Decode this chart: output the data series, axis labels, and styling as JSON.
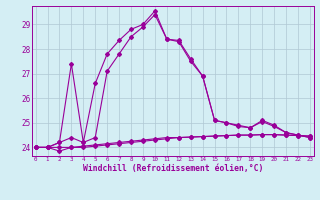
{
  "x": [
    0,
    1,
    2,
    3,
    4,
    5,
    6,
    7,
    8,
    9,
    10,
    11,
    12,
    13,
    14,
    15,
    16,
    17,
    18,
    19,
    20,
    21,
    22,
    23
  ],
  "line1": [
    24.0,
    24.0,
    24.0,
    24.0,
    24.05,
    24.1,
    24.15,
    24.2,
    24.25,
    24.3,
    24.35,
    24.4,
    24.4,
    24.42,
    24.44,
    24.46,
    24.48,
    24.5,
    24.5,
    24.52,
    24.52,
    24.5,
    24.48,
    24.46
  ],
  "line2": [
    24.0,
    24.0,
    23.85,
    24.0,
    24.0,
    24.05,
    24.1,
    24.15,
    24.2,
    24.25,
    24.3,
    24.35,
    24.4,
    24.42,
    24.44,
    24.46,
    24.48,
    24.5,
    24.5,
    24.52,
    24.52,
    24.5,
    24.48,
    24.46
  ],
  "line3": [
    24.0,
    24.0,
    24.2,
    24.4,
    24.2,
    24.4,
    27.1,
    27.8,
    28.5,
    28.9,
    29.4,
    28.4,
    28.3,
    27.5,
    26.9,
    25.1,
    25.0,
    24.9,
    24.8,
    25.1,
    24.9,
    24.6,
    24.5,
    24.4
  ],
  "line4": [
    24.0,
    24.0,
    24.2,
    27.4,
    24.2,
    26.6,
    27.8,
    28.35,
    28.8,
    29.0,
    29.55,
    28.4,
    28.35,
    27.6,
    26.9,
    25.1,
    25.0,
    24.85,
    24.8,
    25.05,
    24.85,
    24.6,
    24.5,
    24.4
  ],
  "line_color": "#990099",
  "bg_color": "#d4eef4",
  "grid_color": "#b0c8d4",
  "ylabel_vals": [
    24,
    25,
    26,
    27,
    28,
    29
  ],
  "xlabel_vals": [
    0,
    1,
    2,
    3,
    4,
    5,
    6,
    7,
    8,
    9,
    10,
    11,
    12,
    13,
    14,
    15,
    16,
    17,
    18,
    19,
    20,
    21,
    22,
    23
  ],
  "xlabel": "Windchill (Refroidissement éolien,°C)",
  "ylim": [
    23.65,
    29.75
  ],
  "xlim": [
    -0.3,
    23.3
  ]
}
